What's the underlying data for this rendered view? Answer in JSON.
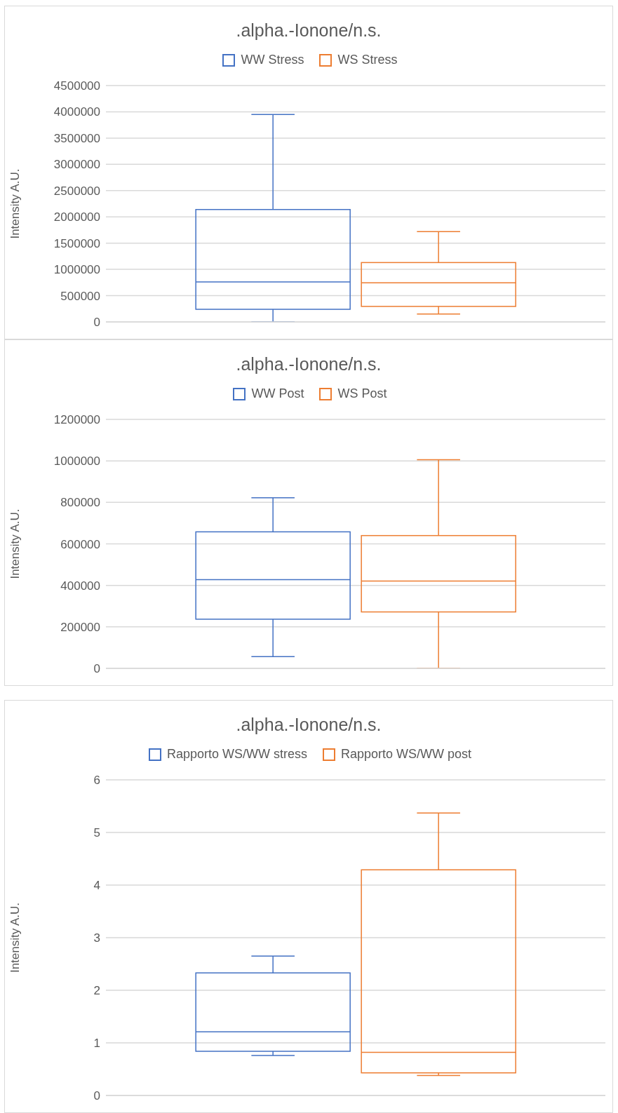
{
  "chart_data": [
    {
      "type": "box",
      "title": ".alpha.-Ionone/n.s.",
      "ylabel": "Intensity A.U.",
      "categories": [
        null
      ],
      "ylim": [
        0,
        4500000
      ],
      "yticks": [
        0,
        500000,
        1000000,
        1500000,
        2000000,
        2500000,
        3000000,
        3500000,
        4000000,
        4500000
      ],
      "grid": "y",
      "legend": "top",
      "tick_labels": "y",
      "series": [
        {
          "name": "WW Stress",
          "color": "#4472c4",
          "boxes": [
            {
              "low": 0,
              "q1": 240000,
              "median": 760000,
              "q3": 2140000,
              "high": 3950000
            }
          ]
        },
        {
          "name": "WS Stress",
          "color": "#ed7d31",
          "boxes": [
            {
              "low": 150000,
              "q1": 295000,
              "median": 745000,
              "q3": 1130000,
              "high": 1720000
            }
          ]
        }
      ]
    },
    {
      "type": "box",
      "title": ".alpha.-Ionone/n.s.",
      "ylabel": "Intensity A.U.",
      "categories": [
        null
      ],
      "ylim": [
        0,
        1200000
      ],
      "yticks": [
        0,
        200000,
        400000,
        600000,
        800000,
        1000000,
        1200000
      ],
      "grid": "y",
      "legend": "top",
      "tick_labels": "y",
      "series": [
        {
          "name": "WW Post",
          "color": "#4472c4",
          "boxes": [
            {
              "low": 57000,
              "q1": 237000,
              "median": 428000,
              "q3": 658000,
              "high": 822000
            }
          ]
        },
        {
          "name": "WS Post",
          "color": "#ed7d31",
          "boxes": [
            {
              "low": 0,
              "q1": 272000,
              "median": 421000,
              "q3": 640000,
              "high": 1006000
            }
          ]
        }
      ]
    },
    {
      "type": "box",
      "title": ".alpha.-Ionone/n.s.",
      "ylabel": "Intensity A.U.",
      "categories": [
        null
      ],
      "ylim": [
        0,
        6
      ],
      "yticks": [
        0,
        1,
        2,
        3,
        4,
        5,
        6
      ],
      "grid": "y",
      "legend": "top",
      "tick_labels": "y",
      "series": [
        {
          "name": "Rapporto WS/WW stress",
          "color": "#4472c4",
          "boxes": [
            {
              "low": 0.76,
              "q1": 0.84,
              "median": 1.21,
              "q3": 2.33,
              "high": 2.65
            }
          ]
        },
        {
          "name": "Rapporto WS/WW post",
          "color": "#ed7d31",
          "boxes": [
            {
              "low": 0.38,
              "q1": 0.43,
              "median": 0.82,
              "q3": 4.29,
              "high": 5.37
            }
          ]
        }
      ]
    }
  ]
}
